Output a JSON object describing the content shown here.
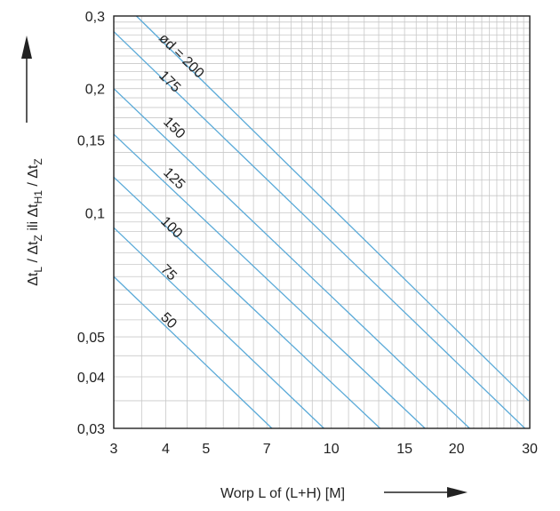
{
  "chart_data": {
    "type": "line",
    "title": "",
    "xlabel": "Worp L of (L+H) [M]",
    "ylabel_parts": {
      "t1": "t",
      "s1": "L",
      "mid": " / ",
      "t2": "t",
      "s2": "Z",
      "ili": " ili ",
      "t3": "t",
      "s3": "H1",
      "mid2": " / ",
      "t4": "t",
      "s4": "Z"
    },
    "xscale": "log",
    "yscale": "log",
    "xlim": [
      3,
      30
    ],
    "ylim": [
      0.03,
      0.3
    ],
    "grid": true,
    "x_tick_labels": [
      {
        "v": 3,
        "label": "3"
      },
      {
        "v": 4,
        "label": "4"
      },
      {
        "v": 5,
        "label": "5"
      },
      {
        "v": 7,
        "label": "7"
      },
      {
        "v": 10,
        "label": "10"
      },
      {
        "v": 15,
        "label": "15"
      },
      {
        "v": 20,
        "label": "20"
      },
      {
        "v": 30,
        "label": "30"
      }
    ],
    "y_tick_labels": [
      {
        "v": 0.03,
        "label": "0,03"
      },
      {
        "v": 0.04,
        "label": "0,04"
      },
      {
        "v": 0.05,
        "label": "0,05"
      },
      {
        "v": 0.1,
        "label": "0,1"
      },
      {
        "v": 0.15,
        "label": "0,15"
      },
      {
        "v": 0.2,
        "label": "0,2"
      },
      {
        "v": 0.3,
        "label": "0,3"
      }
    ],
    "line_color": "#5aaad8",
    "grid_color": "#c8c8c8",
    "series": [
      {
        "label": "ød = 200",
        "points": [
          [
            3.4,
            0.3
          ],
          [
            29.8,
            0.035
          ]
        ]
      },
      {
        "label": "175",
        "points": [
          [
            3,
            0.275
          ],
          [
            29.2,
            0.03
          ]
        ]
      },
      {
        "label": "150",
        "points": [
          [
            3,
            0.2
          ],
          [
            21.5,
            0.03
          ]
        ]
      },
      {
        "label": "125",
        "points": [
          [
            3,
            0.155
          ],
          [
            16.8,
            0.03
          ]
        ]
      },
      {
        "label": "100",
        "points": [
          [
            3,
            0.122
          ],
          [
            13.1,
            0.03
          ]
        ]
      },
      {
        "label": "75",
        "points": [
          [
            3,
            0.092
          ],
          [
            9.6,
            0.03
          ]
        ]
      },
      {
        "label": "50",
        "points": [
          [
            3,
            0.07
          ],
          [
            7.2,
            0.03
          ]
        ]
      }
    ]
  }
}
